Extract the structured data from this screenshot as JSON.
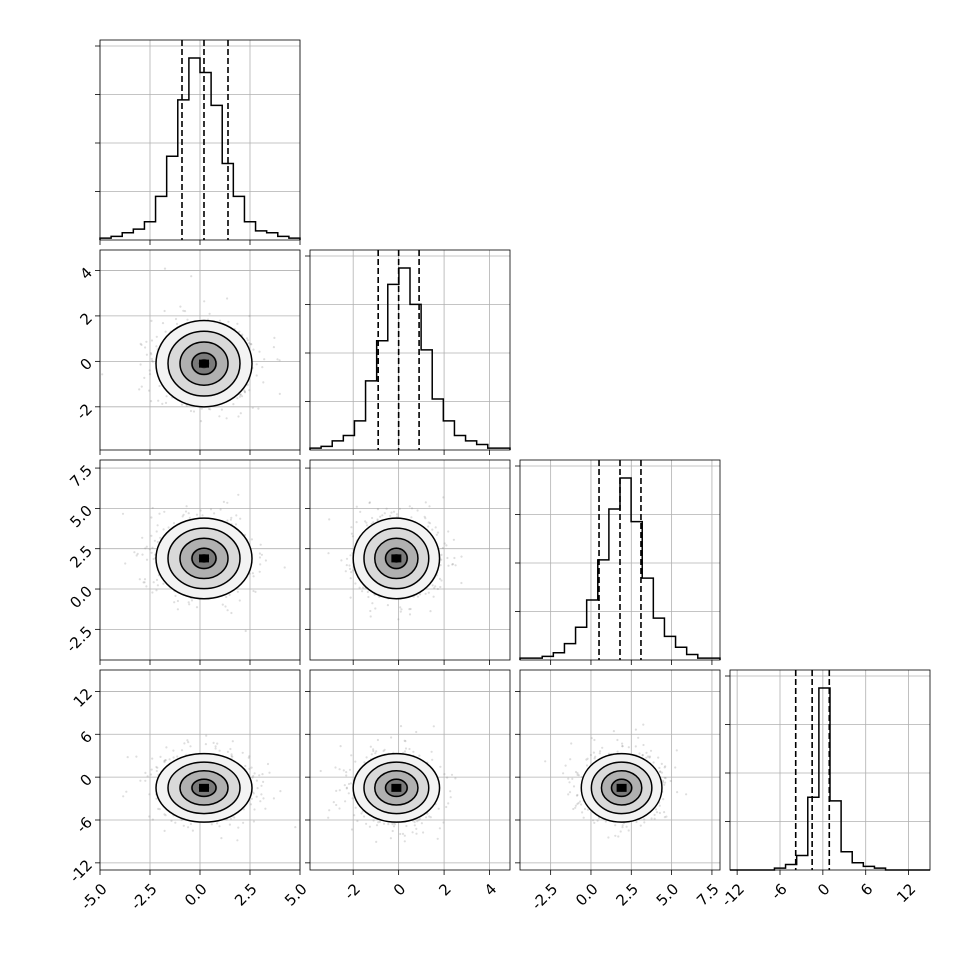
{
  "chart_data": {
    "type": "corner",
    "n_params": 4,
    "params": [
      {
        "mean": 0.2,
        "sd": 1.2,
        "range": [
          -5.0,
          5.0
        ],
        "ticks": [
          "-5.0",
          "-2.5",
          "0.0",
          "2.5",
          "5.0"
        ],
        "tick_values": [
          -5.0,
          -2.5,
          0.0,
          2.5,
          5.0
        ],
        "quantiles": [
          -0.9,
          0.2,
          1.4
        ]
      },
      {
        "mean": -0.1,
        "sd": 0.95,
        "range": [
          -3.9,
          4.9
        ],
        "ticks": [
          "-2",
          "0",
          "2",
          "4"
        ],
        "tick_values": [
          -2,
          0,
          2,
          4
        ],
        "quantiles": [
          -0.9,
          0.0,
          0.9
        ]
      },
      {
        "mean": 1.9,
        "sd": 1.25,
        "range": [
          -4.4,
          8.0
        ],
        "ticks": [
          "-2.5",
          "0.0",
          "2.5",
          "5.0",
          "7.5"
        ],
        "tick_values": [
          -2.5,
          0.0,
          2.5,
          5.0,
          7.5
        ],
        "quantiles": [
          0.5,
          1.8,
          3.1
        ]
      },
      {
        "mean": -1.5,
        "sd": 2.4,
        "range": [
          -13.0,
          15.0
        ],
        "ticks": [
          "-12",
          "-6",
          "0",
          "6",
          "12"
        ],
        "tick_values": [
          -12,
          -6,
          0,
          6,
          12
        ],
        "quantiles": [
          -3.8,
          -1.5,
          0.9
        ]
      }
    ],
    "histograms": [
      {
        "param": 0,
        "bin_range": [
          -5.0,
          5.0
        ],
        "counts": [
          1,
          2,
          4,
          6,
          10,
          24,
          46,
          77,
          100,
          92,
          74,
          42,
          24,
          10,
          5,
          4,
          2,
          1
        ]
      },
      {
        "param": 1,
        "bin_range": [
          -3.9,
          4.9
        ],
        "counts": [
          1,
          2,
          5,
          8,
          16,
          38,
          60,
          91,
          100,
          80,
          55,
          28,
          16,
          8,
          5,
          3,
          1,
          1
        ]
      },
      {
        "param": 2,
        "bin_range": [
          -4.4,
          8.0
        ],
        "counts": [
          1,
          1,
          2,
          4,
          9,
          18,
          33,
          55,
          83,
          100,
          76,
          45,
          23,
          13,
          7,
          3,
          1,
          1
        ]
      },
      {
        "param": 3,
        "bin_range": [
          -13.0,
          15.0
        ],
        "counts": [
          0,
          0,
          0,
          0,
          1,
          3,
          8,
          40,
          100,
          38,
          10,
          4,
          2,
          1,
          0,
          0,
          0,
          0
        ]
      }
    ],
    "contour_levels_sigma": [
      0.5,
      1.0,
      1.5,
      2.0
    ],
    "grid": true
  }
}
